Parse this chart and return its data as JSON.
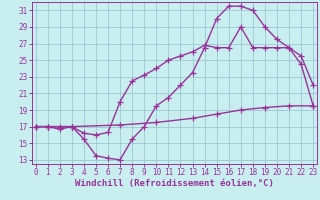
{
  "bg_color": "#c8eef0",
  "grid_color": "#9ec8d0",
  "line_color": "#993399",
  "marker": "+",
  "markersize": 4,
  "linewidth": 1.0,
  "xlabel": "Windchill (Refroidissement éolien,°C)",
  "xlabel_fontsize": 6.5,
  "xticks": [
    0,
    1,
    2,
    3,
    4,
    5,
    6,
    7,
    8,
    9,
    10,
    11,
    12,
    13,
    14,
    15,
    16,
    17,
    18,
    19,
    20,
    21,
    22,
    23
  ],
  "yticks": [
    13,
    15,
    17,
    19,
    21,
    23,
    25,
    27,
    29,
    31
  ],
  "xlim": [
    -0.3,
    23.3
  ],
  "ylim": [
    12.5,
    32
  ],
  "tick_fontsize": 5.5,
  "curve1_x": [
    0,
    1,
    2,
    3,
    4,
    5,
    6,
    7,
    8,
    9,
    10,
    11,
    12,
    13,
    14,
    15,
    16,
    17,
    18,
    19,
    20,
    21,
    22,
    23
  ],
  "curve1_y": [
    17,
    17,
    16.7,
    17,
    15.5,
    13.5,
    13.2,
    13.0,
    15.5,
    17,
    19.5,
    20.5,
    22,
    23.5,
    26.5,
    30.0,
    31.5,
    31.5,
    31.0,
    29.0,
    27.5,
    26.5,
    25.5,
    22.0
  ],
  "curve2_x": [
    0,
    1,
    3,
    4,
    5,
    6,
    7,
    8,
    9,
    10,
    11,
    12,
    13,
    14,
    15,
    16,
    17,
    18,
    19,
    20,
    21,
    22,
    23
  ],
  "curve2_y": [
    17,
    17,
    17,
    16.2,
    16.0,
    16.3,
    20.0,
    22.5,
    23.2,
    24.0,
    25.0,
    25.5,
    26.0,
    26.8,
    26.5,
    26.5,
    29.0,
    26.5,
    26.5,
    26.5,
    26.5,
    24.5,
    19.5
  ],
  "curve3_x": [
    0,
    1,
    2,
    3,
    7,
    10,
    13,
    15,
    17,
    19,
    21,
    23
  ],
  "curve3_y": [
    17.0,
    17.0,
    17.0,
    17.0,
    17.2,
    17.5,
    18.0,
    18.5,
    19.0,
    19.3,
    19.5,
    19.5
  ]
}
